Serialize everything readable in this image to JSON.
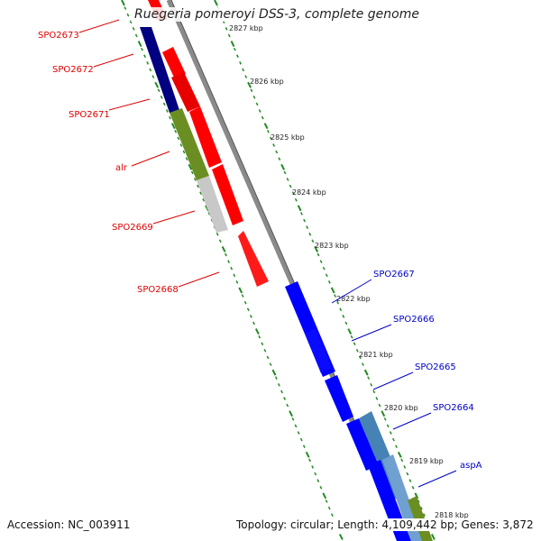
{
  "title": "Ruegeria pomeroyi DSS-3, complete genome",
  "accession": "Accession: NC_003911",
  "summary": "Topology: circular; Length: 4,109,442 bp; Genes: 3,872",
  "colors": {
    "forward": "#ff0000",
    "reverse": "#0000ff",
    "navy": "#000080",
    "olive": "#6b8e23",
    "gray_gene": "#c8c8c8",
    "steel": "#4682b4",
    "backbone": "#8a8a8a",
    "ticks": "#228b22"
  },
  "tick_labels": [
    "2827 kbp",
    "2826 kbp",
    "2825 kbp",
    "2824 kbp",
    "2823 kbp",
    "2822 kbp",
    "2821 kbp",
    "2820 kbp",
    "2819 kbp",
    "2818 kbp"
  ],
  "genes_left": [
    "SPO2673",
    "SPO2672",
    "SPO2671",
    "alr",
    "SPO2669",
    "SPO2668"
  ],
  "genes_right": [
    "SPO2667",
    "SPO2666",
    "SPO2665",
    "SPO2664",
    "aspA"
  ]
}
